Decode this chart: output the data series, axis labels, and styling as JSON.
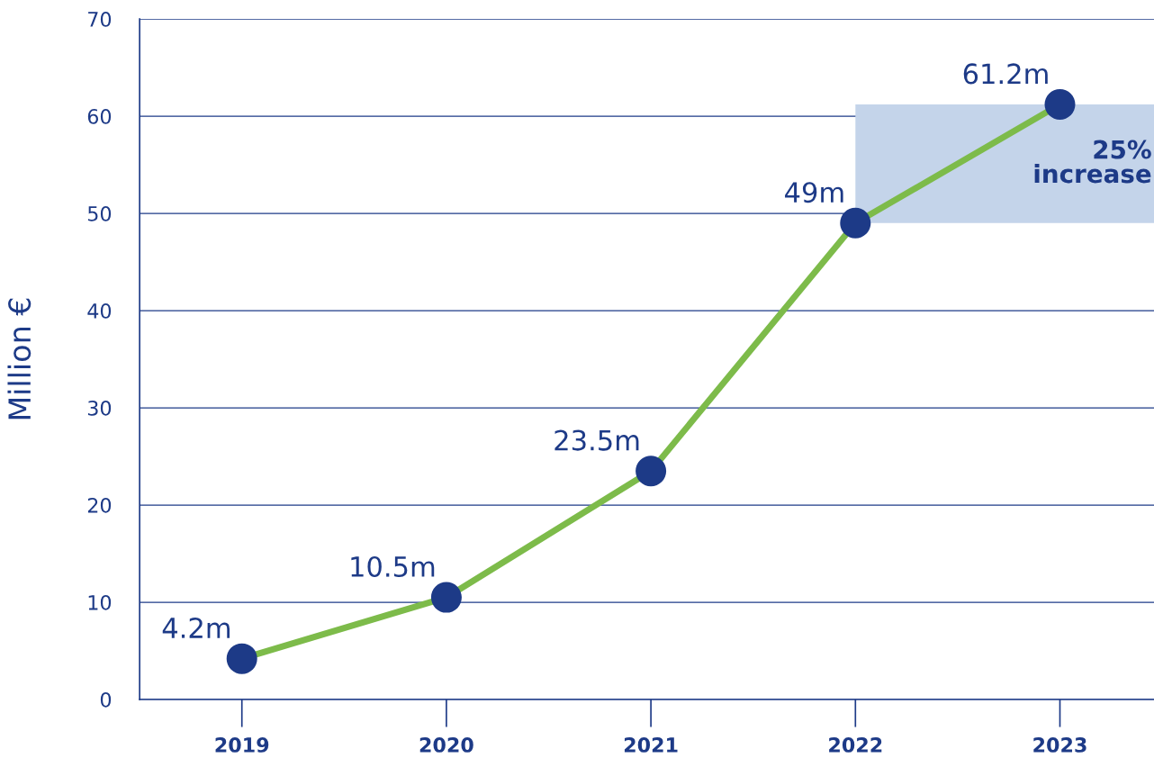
{
  "chart_data": {
    "type": "line",
    "ylabel": "Million €",
    "categories": [
      "2019",
      "2020",
      "2021",
      "2022",
      "2023"
    ],
    "series": [
      {
        "color": "#7dbb4a",
        "colors": [
          "#1d3a87",
          "#1d3a87",
          "#1d3a87",
          "#1d3a87",
          "#1d3a87"
        ],
        "values": [
          4.2,
          10.5,
          23.5,
          49,
          61.2
        ],
        "value_labels": [
          "4.2m",
          "10.5m",
          "23.5m",
          "49m",
          "61.2m"
        ]
      }
    ],
    "bands": [
      {
        "axis": "y",
        "from": 49,
        "to": 61.2,
        "label": "25%\nincrease",
        "color": "#c4d4ea"
      }
    ],
    "ylim": [
      0,
      70
    ],
    "yticks": [
      0,
      10,
      20,
      30,
      40,
      50,
      60,
      70
    ],
    "grid": "y",
    "marker": "circle",
    "line_style": "solid",
    "legend": false
  }
}
